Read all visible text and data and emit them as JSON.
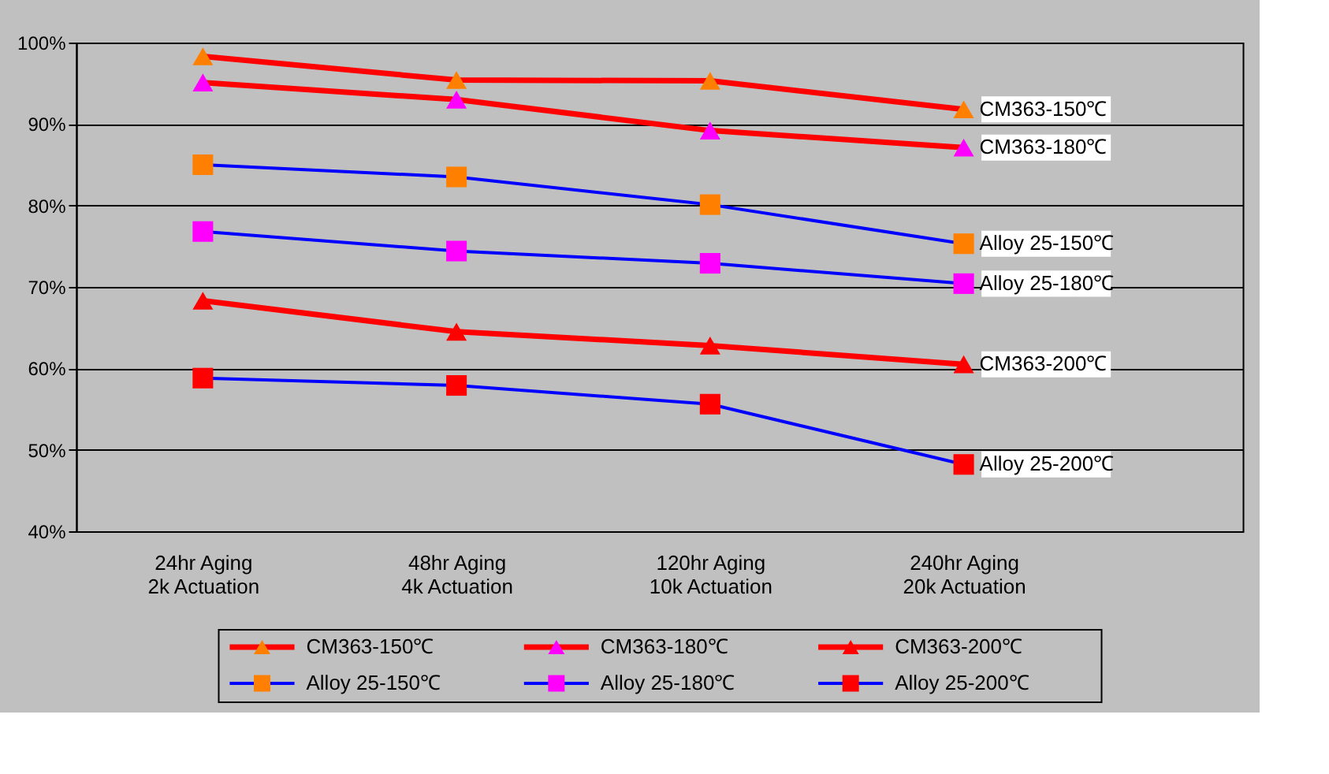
{
  "chart_data": {
    "type": "line",
    "categories": [
      "24hr Aging\n2k Actuation",
      "48hr Aging\n4k Actuation",
      "120hr Aging\n10k Actuation",
      "240hr Aging\n20k Actuation"
    ],
    "ylim": [
      40,
      100
    ],
    "yticks": [
      {
        "value": 40,
        "label": "40%"
      },
      {
        "value": 50,
        "label": "50%"
      },
      {
        "value": 60,
        "label": "60%"
      },
      {
        "value": 70,
        "label": "70%"
      },
      {
        "value": 80,
        "label": "80%"
      },
      {
        "value": 90,
        "label": "90%"
      },
      {
        "value": 100,
        "label": "100%"
      }
    ],
    "grid": "y",
    "legend": "bottom",
    "line_style": "solid",
    "series": [
      {
        "name": "CM363-150℃",
        "color": "#ff0000",
        "marker": "triangle",
        "colors": [
          "#ff8000",
          "#ff8000",
          "#ff8000",
          "#ff8000"
        ],
        "values": [
          98.3,
          95.4,
          95.3,
          91.8
        ]
      },
      {
        "name": "CM363-180℃",
        "color": "#ff0000",
        "marker": "triangle",
        "colors": [
          "#ff00ff",
          "#ff00ff",
          "#ff00ff",
          "#ff00ff"
        ],
        "values": [
          95.1,
          93.0,
          89.2,
          87.1
        ]
      },
      {
        "name": "CM363-200℃",
        "color": "#ff0000",
        "marker": "triangle",
        "colors": [
          "#ff0000",
          "#ff0000",
          "#ff0000",
          "#ff0000"
        ],
        "values": [
          68.3,
          64.5,
          62.8,
          60.5
        ]
      },
      {
        "name": "Alloy 25-150℃",
        "color": "#0000ff",
        "marker": "square",
        "colors": [
          "#ff8000",
          "#ff8000",
          "#ff8000",
          "#ff8000"
        ],
        "values": [
          85.0,
          83.5,
          80.1,
          75.3
        ]
      },
      {
        "name": "Alloy 25-180℃",
        "color": "#0000ff",
        "marker": "square",
        "colors": [
          "#ff00ff",
          "#ff00ff",
          "#ff00ff",
          "#ff00ff"
        ],
        "values": [
          76.8,
          74.4,
          72.9,
          70.4
        ]
      },
      {
        "name": "Alloy 25-200℃",
        "color": "#0000ff",
        "marker": "square",
        "colors": [
          "#ff0000",
          "#ff0000",
          "#ff0000",
          "#ff0000"
        ],
        "values": [
          58.8,
          57.9,
          55.6,
          48.2
        ]
      }
    ]
  }
}
